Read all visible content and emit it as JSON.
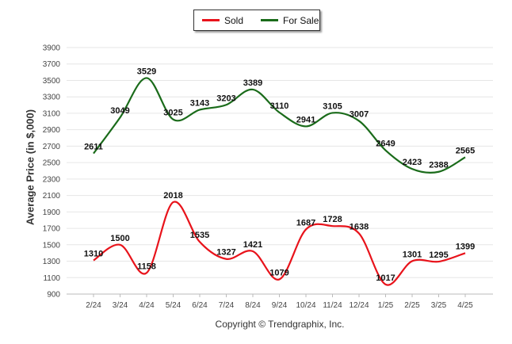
{
  "chart_data": {
    "type": "line",
    "ylabel": "Average Price (in $,000)",
    "xlabel": "",
    "ylim": [
      900,
      3900
    ],
    "yticks": [
      900,
      1100,
      1300,
      1500,
      1700,
      1900,
      2100,
      2300,
      2500,
      2700,
      2900,
      3100,
      3300,
      3500,
      3700,
      3900
    ],
    "categories": [
      "2/24",
      "3/24",
      "4/24",
      "5/24",
      "6/24",
      "7/24",
      "8/24",
      "9/24",
      "10/24",
      "11/24",
      "12/24",
      "1/25",
      "2/25",
      "3/25",
      "4/25"
    ],
    "series": [
      {
        "name": "Sold",
        "color": "#e8131b",
        "values": [
          1310,
          1500,
          1158,
          2018,
          1535,
          1327,
          1421,
          1079,
          1687,
          1728,
          1638,
          1017,
          1301,
          1295,
          1399
        ]
      },
      {
        "name": "For Sale",
        "color": "#1a6b1a",
        "values": [
          2611,
          3049,
          3529,
          3025,
          3143,
          3203,
          3389,
          3110,
          2941,
          3105,
          3007,
          2649,
          2423,
          2388,
          2565
        ]
      }
    ],
    "legend_position": "top-center",
    "grid": true
  },
  "footer": {
    "copyright": "Copyright © Trendgraphix, Inc."
  }
}
